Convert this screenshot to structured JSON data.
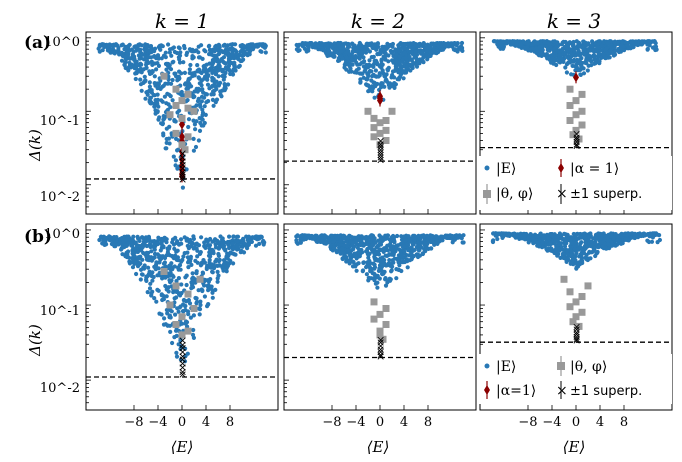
{
  "figure": {
    "column_titles": [
      "k = 1",
      "k = 2",
      "k = 3"
    ],
    "row_labels": [
      "(a)",
      "(b)"
    ],
    "ylabel": "Δ(k)",
    "xlabel": "⟨E⟩",
    "ytick_labels": [
      "10^0",
      "10^-1",
      "10^-2"
    ],
    "xtick_labels": [
      "−8",
      "−4",
      "0",
      "4",
      "8"
    ]
  },
  "legend_a": {
    "entries": [
      "|E⟩",
      "|α = 1⟩",
      "|θ, φ⟩",
      "±1 superp."
    ]
  },
  "legend_b": {
    "entries": [
      "|E⟩",
      "|θ, φ⟩",
      "|α=1⟩",
      "±1 superp."
    ]
  },
  "colors": {
    "eigenstates": "#2878b5",
    "coherent": "#8b0000",
    "theta_phi": "#999999",
    "superp": "#000000"
  },
  "chart_data": [
    {
      "type": "scatter",
      "panel": "a",
      "k": 1,
      "yscale": "log",
      "xlim": [
        -16,
        16
      ],
      "ylim": [
        0.004,
        1.2
      ],
      "dashed_line": 0.012,
      "series": [
        {
          "name": "|E⟩",
          "envelope": {
            "x_edge": [
              -14,
              14
            ],
            "y_top": 0.82,
            "y_bottom_center": 0.008
          }
        },
        {
          "name": "|α = 1⟩",
          "points": [
            [
              0,
              0.066
            ],
            [
              0,
              0.045
            ],
            [
              0,
              0.039
            ],
            [
              0,
              0.028
            ],
            [
              0,
              0.022
            ],
            [
              0,
              0.018
            ],
            [
              0,
              0.016
            ],
            [
              0,
              0.014
            ],
            [
              0,
              0.013
            ]
          ]
        },
        {
          "name": "|θ, φ⟩",
          "points": [
            [
              -3,
              0.3
            ],
            [
              -1,
              0.2
            ],
            [
              1,
              0.17
            ],
            [
              0,
              0.14
            ],
            [
              -1,
              0.12
            ],
            [
              1,
              0.11
            ],
            [
              -2,
              0.09
            ],
            [
              2,
              0.1
            ],
            [
              0,
              0.08
            ],
            [
              -1,
              0.05
            ],
            [
              1,
              0.045
            ],
            [
              0,
              0.035
            ],
            [
              0.5,
              0.03
            ]
          ]
        },
        {
          "name": "±1 superp.",
          "points": [
            [
              0,
              0.027
            ],
            [
              0,
              0.024
            ],
            [
              0,
              0.021
            ],
            [
              0,
              0.019
            ],
            [
              0,
              0.017
            ],
            [
              0,
              0.015
            ],
            [
              0,
              0.014
            ],
            [
              0,
              0.013
            ],
            [
              0,
              0.012
            ]
          ]
        }
      ]
    },
    {
      "type": "scatter",
      "panel": "a",
      "k": 2,
      "yscale": "log",
      "xlim": [
        -16,
        16
      ],
      "ylim": [
        0.004,
        1.2
      ],
      "dashed_line": 0.021,
      "series": [
        {
          "name": "|E⟩",
          "envelope": {
            "x_edge": [
              -14,
              14
            ],
            "y_top": 0.85,
            "y_bottom_center": 0.12
          }
        },
        {
          "name": "|α = 1⟩",
          "points": [
            [
              0,
              0.16
            ],
            [
              0,
              0.15
            ],
            [
              0,
              0.14
            ]
          ]
        },
        {
          "name": "|θ, φ⟩",
          "points": [
            [
              -2,
              0.1
            ],
            [
              2,
              0.1
            ],
            [
              -1,
              0.08
            ],
            [
              1,
              0.075
            ],
            [
              0,
              0.07
            ],
            [
              -1,
              0.06
            ],
            [
              1,
              0.055
            ],
            [
              0,
              0.05
            ],
            [
              -1,
              0.045
            ],
            [
              1,
              0.04
            ],
            [
              0,
              0.035
            ]
          ]
        },
        {
          "name": "±1 superp.",
          "points": [
            [
              0,
              0.04
            ],
            [
              0,
              0.036
            ],
            [
              0,
              0.033
            ],
            [
              0,
              0.03
            ],
            [
              0,
              0.028
            ],
            [
              0,
              0.026
            ],
            [
              0,
              0.024
            ],
            [
              0,
              0.022
            ]
          ]
        }
      ]
    },
    {
      "type": "scatter",
      "panel": "a",
      "k": 3,
      "yscale": "log",
      "xlim": [
        -16,
        16
      ],
      "ylim": [
        0.004,
        1.2
      ],
      "dashed_line": 0.032,
      "series": [
        {
          "name": "|E⟩",
          "envelope": {
            "x_edge": [
              -14,
              14
            ],
            "y_top": 0.9,
            "y_bottom_center": 0.27
          }
        },
        {
          "name": "|α = 1⟩",
          "points": [
            [
              0,
              0.29
            ]
          ]
        },
        {
          "name": "|θ, φ⟩",
          "points": [
            [
              -1,
              0.2
            ],
            [
              1,
              0.17
            ],
            [
              0,
              0.14
            ],
            [
              -1,
              0.12
            ],
            [
              1,
              0.1
            ],
            [
              0,
              0.09
            ],
            [
              -1,
              0.075
            ],
            [
              1,
              0.065
            ],
            [
              0,
              0.055
            ],
            [
              -0.5,
              0.048
            ],
            [
              0.5,
              0.042
            ]
          ]
        },
        {
          "name": "±1 superp.",
          "points": [
            [
              0,
              0.05
            ],
            [
              0,
              0.045
            ],
            [
              0,
              0.042
            ],
            [
              0,
              0.039
            ],
            [
              0,
              0.036
            ],
            [
              0,
              0.034
            ]
          ]
        }
      ]
    },
    {
      "type": "scatter",
      "panel": "b",
      "k": 1,
      "yscale": "log",
      "xlim": [
        -16,
        16
      ],
      "ylim": [
        0.004,
        1.2
      ],
      "dashed_line": 0.011,
      "series": [
        {
          "name": "|E⟩",
          "envelope": {
            "x_edge": [
              -14,
              14
            ],
            "y_top": 0.82,
            "y_bottom_center": 0.012
          }
        },
        {
          "name": "|θ, φ⟩",
          "points": [
            [
              -3,
              0.28
            ],
            [
              3,
              0.22
            ],
            [
              -1,
              0.18
            ],
            [
              1,
              0.14
            ],
            [
              -2,
              0.1
            ],
            [
              2,
              0.09
            ],
            [
              0,
              0.07
            ],
            [
              -1,
              0.055
            ],
            [
              1,
              0.045
            ],
            [
              0,
              0.04
            ]
          ]
        },
        {
          "name": "±1 superp.",
          "points": [
            [
              0,
              0.034
            ],
            [
              0,
              0.03
            ],
            [
              0,
              0.027
            ],
            [
              0,
              0.024
            ],
            [
              0,
              0.021
            ],
            [
              0,
              0.019
            ],
            [
              0,
              0.017
            ],
            [
              0,
              0.015
            ],
            [
              0,
              0.013
            ],
            [
              0,
              0.012
            ]
          ]
        }
      ]
    },
    {
      "type": "scatter",
      "panel": "b",
      "k": 2,
      "yscale": "log",
      "xlim": [
        -16,
        16
      ],
      "ylim": [
        0.004,
        1.2
      ],
      "dashed_line": 0.02,
      "series": [
        {
          "name": "|E⟩",
          "envelope": {
            "x_edge": [
              -14,
              14
            ],
            "y_top": 0.85,
            "y_bottom_center": 0.13
          }
        },
        {
          "name": "|θ, φ⟩",
          "points": [
            [
              -1,
              0.11
            ],
            [
              1,
              0.09
            ],
            [
              0,
              0.075
            ],
            [
              -1,
              0.065
            ],
            [
              1,
              0.055
            ],
            [
              0,
              0.045
            ],
            [
              0,
              0.04
            ],
            [
              0.5,
              0.035
            ]
          ]
        },
        {
          "name": "±1 superp.",
          "points": [
            [
              0,
              0.035
            ],
            [
              0,
              0.032
            ],
            [
              0,
              0.029
            ],
            [
              0,
              0.026
            ],
            [
              0,
              0.024
            ],
            [
              0,
              0.022
            ],
            [
              0,
              0.021
            ]
          ]
        }
      ]
    },
    {
      "type": "scatter",
      "panel": "b",
      "k": 3,
      "yscale": "log",
      "xlim": [
        -16,
        16
      ],
      "ylim": [
        0.004,
        1.2
      ],
      "dashed_line": 0.032,
      "series": [
        {
          "name": "|E⟩",
          "envelope": {
            "x_edge": [
              -14,
              14
            ],
            "y_top": 0.9,
            "y_bottom_center": 0.3
          }
        },
        {
          "name": "|θ, φ⟩",
          "points": [
            [
              -2,
              0.22
            ],
            [
              2,
              0.18
            ],
            [
              -1,
              0.15
            ],
            [
              1,
              0.13
            ],
            [
              0,
              0.11
            ],
            [
              -1,
              0.095
            ],
            [
              1,
              0.08
            ],
            [
              0,
              0.07
            ],
            [
              -0.5,
              0.06
            ],
            [
              0.5,
              0.052
            ]
          ]
        },
        {
          "name": "±1 superp.",
          "points": [
            [
              0,
              0.052
            ],
            [
              0,
              0.048
            ],
            [
              0,
              0.044
            ],
            [
              0,
              0.041
            ],
            [
              0,
              0.038
            ],
            [
              0,
              0.036
            ],
            [
              0,
              0.034
            ]
          ]
        }
      ]
    }
  ]
}
